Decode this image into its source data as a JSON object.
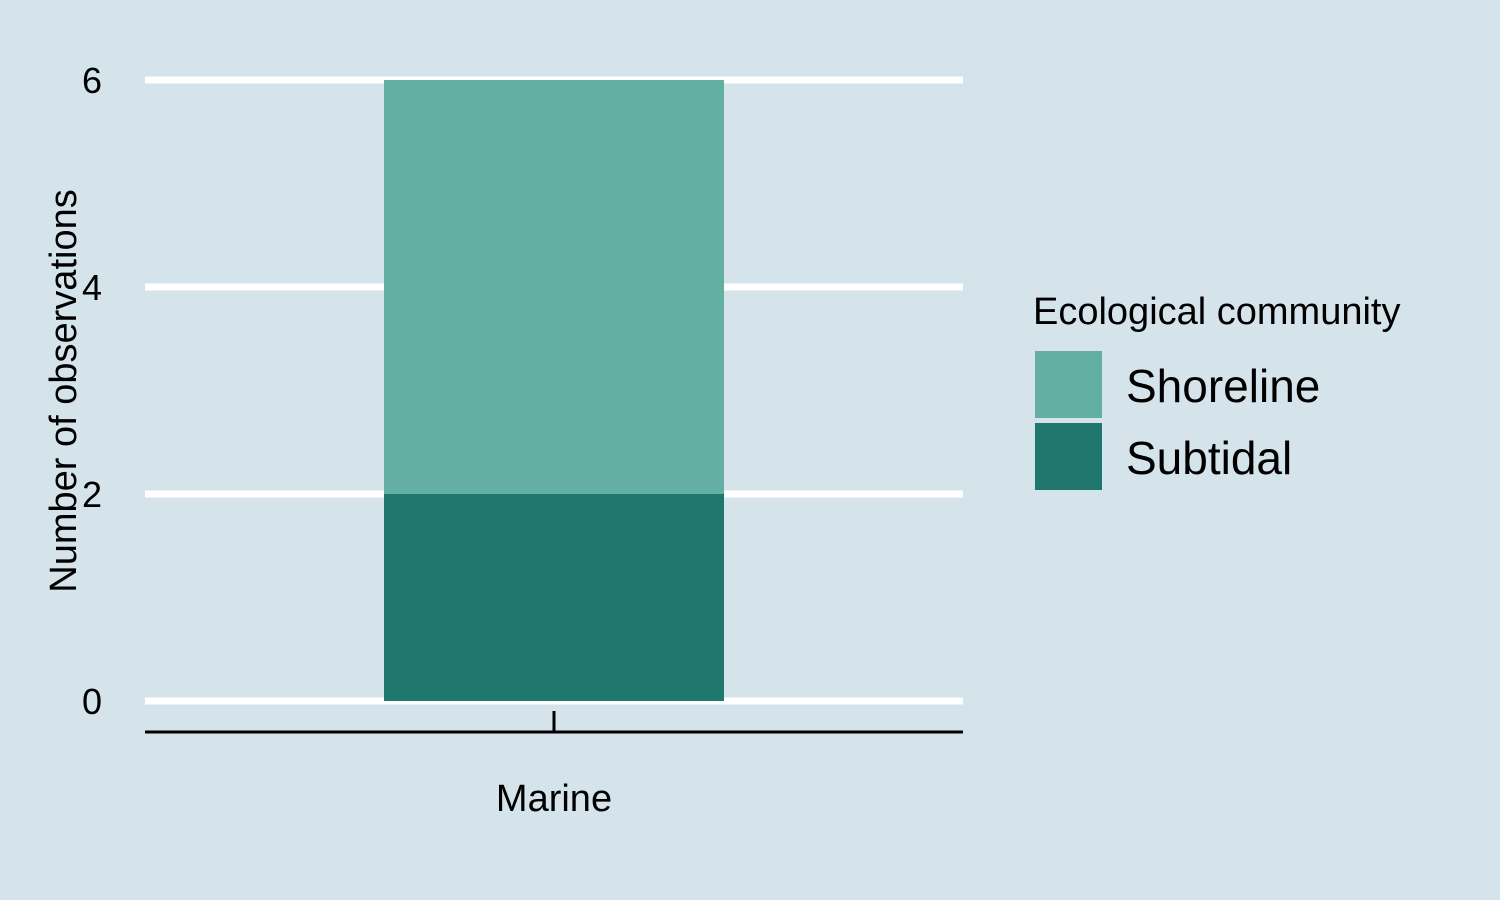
{
  "colors": {
    "background": "#d5e4eb",
    "gridline": "#ffffff",
    "axis": "#000000",
    "shoreline": "#64afa4",
    "subtidal": "#20776e"
  },
  "chart_data": {
    "type": "bar",
    "stacked": true,
    "categories": [
      "Marine"
    ],
    "series": [
      {
        "name": "Subtidal",
        "values": [
          2
        ],
        "color": "#20776e"
      },
      {
        "name": "Shoreline",
        "values": [
          4
        ],
        "color": "#64afa4"
      }
    ],
    "xlabel": "",
    "ylabel": "Number of observations",
    "ylim": [
      0,
      6
    ],
    "yticks": [
      0,
      2,
      4,
      6
    ],
    "grid": "horizontal",
    "legend": {
      "title": "Ecological community",
      "placement": "right",
      "entries": [
        {
          "label": "Shoreline",
          "color": "#64afa4"
        },
        {
          "label": "Subtidal",
          "color": "#20776e"
        }
      ]
    }
  }
}
